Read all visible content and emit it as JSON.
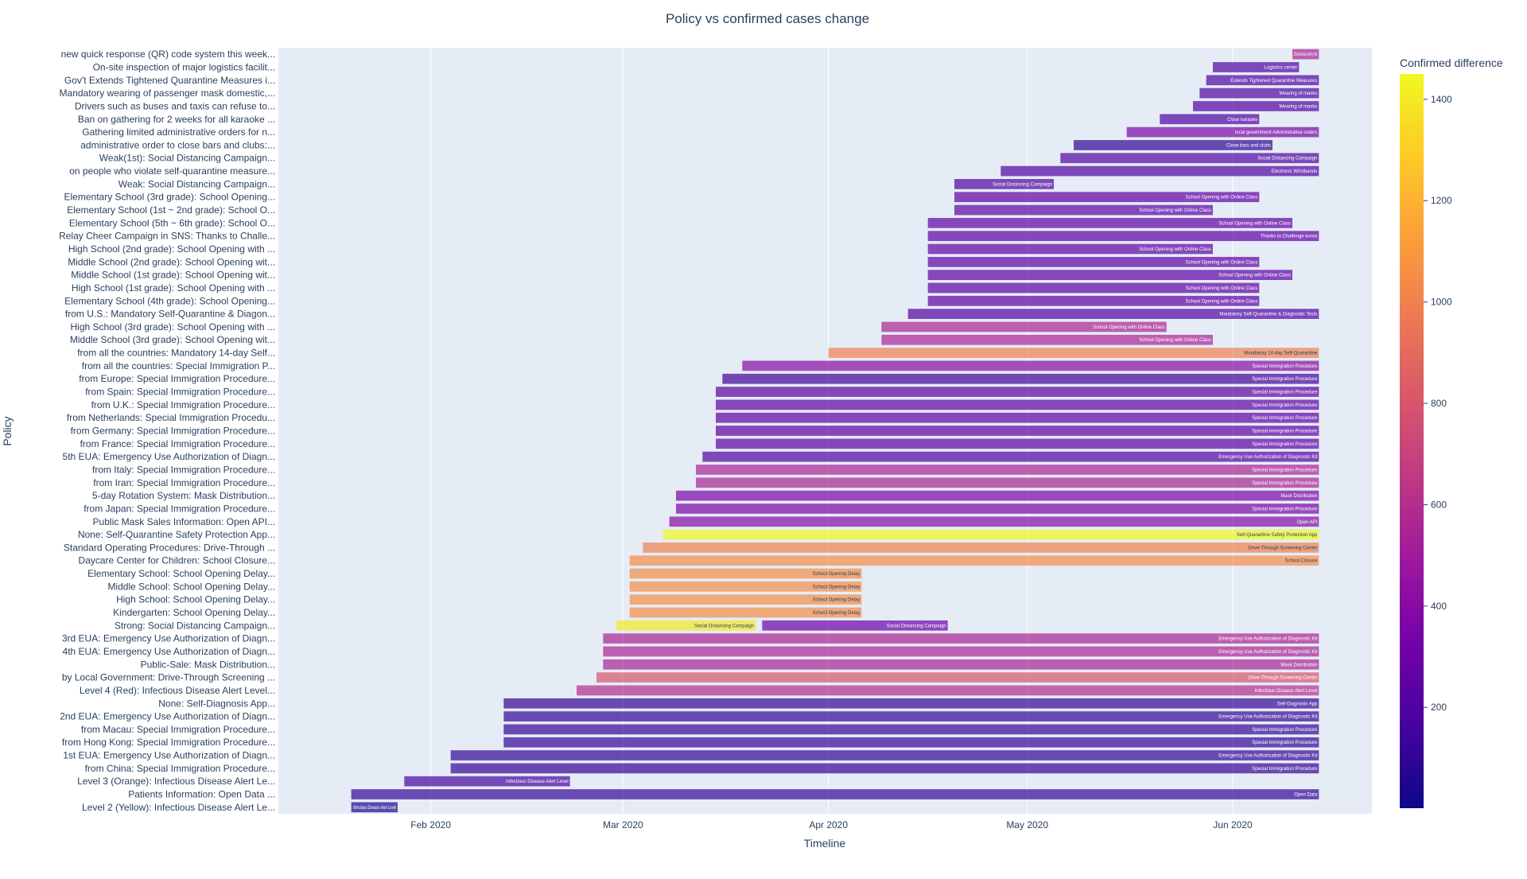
{
  "chart_data": {
    "type": "bar",
    "orientation": "horizontal timeline (gantt)",
    "title": "Policy vs confirmed cases change",
    "xlabel": "Timeline",
    "ylabel": "Policy",
    "colorbar_title": "Confirmed difference",
    "colorbar_ticks": [
      200,
      400,
      600,
      800,
      1000,
      1200,
      1400
    ],
    "color_range": [
      1,
      1450
    ],
    "colorscale": [
      "#0d0887",
      "#46039f",
      "#7201a8",
      "#9c179e",
      "#bd3786",
      "#d8576b",
      "#ed7953",
      "#fb9f3a",
      "#fdca26",
      "#f0f921"
    ],
    "bar_opacity": 0.7,
    "plot_background": "#e5ecf6",
    "grid": true,
    "x_range": [
      "2020-01-09",
      "2020-06-22"
    ],
    "x_ticks": [
      {
        "date": "2020-02-01",
        "label": "Feb 2020"
      },
      {
        "date": "2020-03-01",
        "label": "Mar 2020"
      },
      {
        "date": "2020-04-01",
        "label": "Apr 2020"
      },
      {
        "date": "2020-05-01",
        "label": "May 2020"
      },
      {
        "date": "2020-06-01",
        "label": "Jun 2020"
      }
    ],
    "bars": [
      {
        "policy": "Level 2 (Yellow): Infectious Disease Alert Le...",
        "start": "2020-01-20",
        "end": "2020-01-27",
        "text": "Infectious Disease Alert Level",
        "value": 50
      },
      {
        "policy": "Patients Information: Open Data ...",
        "start": "2020-01-20",
        "end": "2020-06-14",
        "text": "Open Data",
        "value": 110
      },
      {
        "policy": "Level 3 (Orange): Infectious Disease Alert Le...",
        "start": "2020-01-28",
        "end": "2020-02-22",
        "text": "Infectious Disease Alert Level",
        "value": 170
      },
      {
        "policy": "from China: Special Immigration Procedure...",
        "start": "2020-02-04",
        "end": "2020-06-14",
        "text": "Special Immigration Procedure",
        "value": 110
      },
      {
        "policy": "1st EUA: Emergency Use Authorization of Diagn...",
        "start": "2020-02-04",
        "end": "2020-06-14",
        "text": "Emergency Use Authorization of Diagnostic Kit",
        "value": 110
      },
      {
        "policy": "from Hong Kong: Special Immigration Procedure...",
        "start": "2020-02-12",
        "end": "2020-06-14",
        "text": "Special Immigration Procedure",
        "value": 110
      },
      {
        "policy": "from Macau: Special Immigration Procedure...",
        "start": "2020-02-12",
        "end": "2020-06-14",
        "text": "Special Immigration Procedure",
        "value": 110
      },
      {
        "policy": "2nd EUA: Emergency Use Authorization of Diagn...",
        "start": "2020-02-12",
        "end": "2020-06-14",
        "text": "Emergency Use Authorization of Diagnostic Kit",
        "value": 110
      },
      {
        "policy": "None: Self-Diagnosis App...",
        "start": "2020-02-12",
        "end": "2020-06-14",
        "text": "Self-Diagnosis App",
        "value": 110
      },
      {
        "policy": "Level 4 (Red): Infectious Disease Alert Level...",
        "start": "2020-02-23",
        "end": "2020-06-14",
        "text": "Infectious Disease Alert Level",
        "value": 600
      },
      {
        "policy": "by Local Government: Drive-Through Screening ...",
        "start": "2020-02-26",
        "end": "2020-06-14",
        "text": "Drive-Through Screening Center",
        "value": 800
      },
      {
        "policy": "Public-Sale: Mask Distribution...",
        "start": "2020-02-27",
        "end": "2020-06-14",
        "text": "Mask Distribution",
        "value": 550
      },
      {
        "policy": "4th EUA: Emergency Use Authorization of Diagn...",
        "start": "2020-02-27",
        "end": "2020-06-14",
        "text": "Emergency Use Authorization of Diagnostic Kit",
        "value": 550
      },
      {
        "policy": "3rd EUA: Emergency Use Authorization of Diagn...",
        "start": "2020-02-27",
        "end": "2020-06-14",
        "text": "Emergency Use Authorization of Diagnostic Kit",
        "value": 550
      },
      {
        "policy": "Strong: Social Distancing Campaign...",
        "start": "2020-02-29",
        "end": "2020-03-21",
        "text": "Social Distancing Campaign",
        "value": 1400
      },
      {
        "policy": "Strong: Social Distancing Campaign...",
        "start": "2020-03-22",
        "end": "2020-04-19",
        "text": "Social Distancing Campaign",
        "value": 300
      },
      {
        "policy": "Kindergarten: School Opening Delay...",
        "start": "2020-03-02",
        "end": "2020-04-06",
        "text": "School Opening Delay",
        "value": 1050
      },
      {
        "policy": "High School: School Opening Delay...",
        "start": "2020-03-02",
        "end": "2020-04-06",
        "text": "School Opening Delay",
        "value": 1050
      },
      {
        "policy": "Middle School: School Opening Delay...",
        "start": "2020-03-02",
        "end": "2020-04-06",
        "text": "School Opening Delay",
        "value": 1050
      },
      {
        "policy": "Elementary School: School Opening Delay...",
        "start": "2020-03-02",
        "end": "2020-04-06",
        "text": "School Opening Delay",
        "value": 1050
      },
      {
        "policy": "Daycare Center for Children: School Closure...",
        "start": "2020-03-02",
        "end": "2020-06-14",
        "text": "School Closure",
        "value": 1050
      },
      {
        "policy": "Standard Operating Procedures: Drive-Through ...",
        "start": "2020-03-04",
        "end": "2020-06-14",
        "text": "Drive-Through Screening Center",
        "value": 1000
      },
      {
        "policy": "None: Self-Quarantine Safety Protection App...",
        "start": "2020-03-07",
        "end": "2020-06-14",
        "text": "Self-Quarantine Safety Protection App",
        "value": 1450
      },
      {
        "policy": "Public Mask Sales Information: Open API...",
        "start": "2020-03-08",
        "end": "2020-06-14",
        "text": "Open API",
        "value": 400
      },
      {
        "policy": "from Japan: Special Immigration Procedure...",
        "start": "2020-03-09",
        "end": "2020-06-14",
        "text": "Special Immigration Procedure",
        "value": 350
      },
      {
        "policy": "5-day Rotation System: Mask Distribution...",
        "start": "2020-03-09",
        "end": "2020-06-14",
        "text": "Mask Distribution",
        "value": 350
      },
      {
        "policy": "from Iran: Special Immigration Procedure...",
        "start": "2020-03-12",
        "end": "2020-06-14",
        "text": "Special Immigration Procedure",
        "value": 550
      },
      {
        "policy": "from Italy: Special Immigration Procedure...",
        "start": "2020-03-12",
        "end": "2020-06-14",
        "text": "Special Immigration Procedure",
        "value": 550
      },
      {
        "policy": "5th EUA: Emergency Use Authorization of Diagn...",
        "start": "2020-03-13",
        "end": "2020-06-14",
        "text": "Emergency Use Authorization of Diagnostic Kit",
        "value": 200
      },
      {
        "policy": "from France: Special Immigration Procedure...",
        "start": "2020-03-15",
        "end": "2020-06-14",
        "text": "Special Immigration Procedure",
        "value": 250
      },
      {
        "policy": "from Germany: Special Immigration Procedure...",
        "start": "2020-03-15",
        "end": "2020-06-14",
        "text": "Special Immigration Procedure",
        "value": 250
      },
      {
        "policy": "from Netherlands: Special Immigration Procedu...",
        "start": "2020-03-15",
        "end": "2020-06-14",
        "text": "Special Immigration Procedure",
        "value": 250
      },
      {
        "policy": "from U.K.: Special Immigration Procedure...",
        "start": "2020-03-15",
        "end": "2020-06-14",
        "text": "Special Immigration Procedure",
        "value": 250
      },
      {
        "policy": "from Spain: Special Immigration Procedure...",
        "start": "2020-03-15",
        "end": "2020-06-14",
        "text": "Special Immigration Procedure",
        "value": 250
      },
      {
        "policy": "from Europe: Special Immigration Procedure...",
        "start": "2020-03-16",
        "end": "2020-06-14",
        "text": "Special Immigration Procedure",
        "value": 150
      },
      {
        "policy": "from all the countries: Special Immigration P...",
        "start": "2020-03-19",
        "end": "2020-06-14",
        "text": "Special Immigration Procedure",
        "value": 400
      },
      {
        "policy": "from all the countries: Mandatory 14-day Self...",
        "start": "2020-04-01",
        "end": "2020-06-14",
        "text": "Mandatory 14-day Self-Quarantine",
        "value": 1000
      },
      {
        "policy": "Middle School (3rd grade): School Opening wit...",
        "start": "2020-04-09",
        "end": "2020-05-29",
        "text": "School Opening with Online Class",
        "value": 550
      },
      {
        "policy": "High School (3rd grade): School Opening with ...",
        "start": "2020-04-09",
        "end": "2020-05-22",
        "text": "School Opening with Online Class",
        "value": 550
      },
      {
        "policy": "from U.S.: Mandatory Self-Quarantine & Diagon...",
        "start": "2020-04-13",
        "end": "2020-06-14",
        "text": "Mandatory Self-Quarantine & Diagnostic Tests",
        "value": 200
      },
      {
        "policy": "Elementary School (4th grade): School Opening...",
        "start": "2020-04-16",
        "end": "2020-06-05",
        "text": "School Opening with Online Class",
        "value": 250
      },
      {
        "policy": "High School (1st grade): School Opening with ...",
        "start": "2020-04-16",
        "end": "2020-06-05",
        "text": "School Opening with Online Class",
        "value": 250
      },
      {
        "policy": "Middle School (1st grade): School Opening wit...",
        "start": "2020-04-16",
        "end": "2020-06-10",
        "text": "School Opening with Online Class",
        "value": 250
      },
      {
        "policy": "Middle School (2nd grade): School Opening wit...",
        "start": "2020-04-16",
        "end": "2020-06-05",
        "text": "School Opening with Online Class",
        "value": 250
      },
      {
        "policy": "High School (2nd grade): School Opening with ...",
        "start": "2020-04-16",
        "end": "2020-05-29",
        "text": "School Opening with Online Class",
        "value": 250
      },
      {
        "policy": "Relay Cheer Campaign in SNS: Thanks to Challe...",
        "start": "2020-04-16",
        "end": "2020-06-14",
        "text": "Thanks to Challenge korea",
        "value": 250
      },
      {
        "policy": "Elementary School (5th ~ 6th grade): School O...",
        "start": "2020-04-16",
        "end": "2020-06-10",
        "text": "School Opening with Online Class",
        "value": 250
      },
      {
        "policy": "Elementary School (1st ~ 2nd grade): School O...",
        "start": "2020-04-20",
        "end": "2020-05-29",
        "text": "School Opening with Online Class",
        "value": 250
      },
      {
        "policy": "Elementary School (3rd grade): School Opening...",
        "start": "2020-04-20",
        "end": "2020-06-05",
        "text": "School Opening with Online Class",
        "value": 250
      },
      {
        "policy": "Weak: Social Distancing Campaign...",
        "start": "2020-04-20",
        "end": "2020-05-05",
        "text": "Social Distancing Campaign",
        "value": 200
      },
      {
        "policy": "on people who violate self-quarantine measure...",
        "start": "2020-04-27",
        "end": "2020-06-14",
        "text": "Electronic Wristbands",
        "value": 200
      },
      {
        "policy": "Weak(1st): Social Distancing Campaign...",
        "start": "2020-05-06",
        "end": "2020-06-14",
        "text": "Social Distancing Campaign",
        "value": 200
      },
      {
        "policy": "administrative order to close bars and clubs:...",
        "start": "2020-05-08",
        "end": "2020-06-07",
        "text": "Close bars and clubs",
        "value": 100
      },
      {
        "policy": "Gathering limited administrative orders for n...",
        "start": "2020-05-16",
        "end": "2020-06-14",
        "text": "local government Administrative orders",
        "value": 350
      },
      {
        "policy": "Ban on gathering for 2 weeks for all karaoke ...",
        "start": "2020-05-21",
        "end": "2020-06-05",
        "text": "Close karaoke",
        "value": 200
      },
      {
        "policy": "Drivers such as buses and taxis can refuse to...",
        "start": "2020-05-26",
        "end": "2020-06-14",
        "text": "Wearing of masks",
        "value": 200
      },
      {
        "policy": "Mandatory wearing of passenger mask domestic,...",
        "start": "2020-05-27",
        "end": "2020-06-14",
        "text": "Wearing of masks",
        "value": 200
      },
      {
        "policy": "Gov't Extends Tightened Quarantine Measures i...",
        "start": "2020-05-28",
        "end": "2020-06-14",
        "text": "Extends Tightened Quarantine Measures",
        "value": 200
      },
      {
        "policy": "On-site inspection of major logistics facilit...",
        "start": "2020-05-29",
        "end": "2020-06-11",
        "text": "Logistics center",
        "value": 200
      },
      {
        "policy": "new quick response (QR) code system this week...",
        "start": "2020-06-10",
        "end": "2020-06-14",
        "text": "Electronic entry list",
        "value": 550
      }
    ]
  }
}
